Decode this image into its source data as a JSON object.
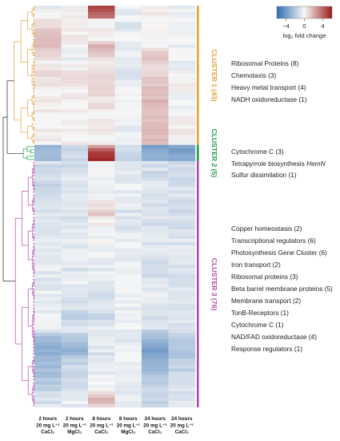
{
  "chart_data": {
    "type": "heatmap",
    "colorbar": {
      "label": "log₂ fold change",
      "ticks": [
        -4,
        0,
        4
      ],
      "range": [
        -6,
        6
      ],
      "low_color": "#2f6cb0",
      "mid_color": "#f7f7f7",
      "high_color": "#9b1b1b"
    },
    "columns": [
      [
        "2 hours",
        "20 mg L⁻¹",
        "CaCl₂"
      ],
      [
        "2 hours",
        "20 mg L⁻¹",
        "MgCl₂"
      ],
      [
        "8 hours",
        "20 mg L⁻¹",
        "CaCl₂"
      ],
      [
        "8 hours",
        "20 mg L⁻¹",
        "MgCl₂"
      ],
      [
        "24 hours",
        "20 mg L⁻¹",
        "CaCl₂"
      ],
      [
        "24 hours",
        "20 mg L⁻¹",
        "CaCl₂"
      ]
    ],
    "clusters": [
      {
        "label": "CLUSTER 1 (43)",
        "color": "#e0a23a",
        "rows": 43,
        "categories": [
          "Ribosomal Proteins (8)",
          "Chemotaxis (3)",
          "Heavy metal transport (4)",
          "NADH oxidoreductase (1)"
        ]
      },
      {
        "label": "CLUSTER 2 (5)",
        "color": "#1e9a4a",
        "rows": 5,
        "categories": [
          "Cytochrome C (3)",
          "Tetrapyrrole biosynthesis HemN",
          "Sulfur dissimilation (1)"
        ]
      },
      {
        "label": "CLUSTER 3 (76)",
        "color": "#b04aa8",
        "rows": 76,
        "categories": [
          "Copper homeostasis (2)",
          "Transcriptional regulators (6)",
          "Photosynthesis Gene Cluster (6)",
          "Iron transport (2)",
          "Ribosomal proteins (3)",
          "Beta barrel membrane proteins (5)",
          "Membrane transport (2)",
          "TonB-Receptors (1)",
          "Cytochrome C (1)",
          "NAD/FAD oxidoreductase (4)",
          "Response regulators (1)"
        ]
      }
    ],
    "column_profiles": [
      [
        [
          0,
          -0.3
        ],
        [
          4,
          0.5
        ],
        [
          9,
          1.5
        ],
        [
          13,
          1.4
        ],
        [
          17,
          0.2
        ],
        [
          22,
          0.8
        ],
        [
          26,
          -0.2
        ],
        [
          30,
          0.3
        ],
        [
          35,
          0.2
        ],
        [
          40,
          0.1
        ],
        [
          42,
          0.3
        ],
        [
          43,
          -2.8
        ],
        [
          47,
          -2.4
        ],
        [
          48,
          -1.0
        ],
        [
          55,
          -1.4
        ],
        [
          60,
          -0.8
        ],
        [
          68,
          -1.0
        ],
        [
          76,
          -0.5
        ],
        [
          84,
          -0.6
        ],
        [
          92,
          -0.4
        ],
        [
          99,
          -0.6
        ],
        [
          102,
          -2.2
        ],
        [
          106,
          -3.1
        ],
        [
          110,
          -2.6
        ],
        [
          114,
          -2.4
        ],
        [
          118,
          -1.4
        ],
        [
          123,
          -0.8
        ]
      ],
      [
        [
          0,
          -0.2
        ],
        [
          5,
          0.6
        ],
        [
          10,
          0.3
        ],
        [
          16,
          -0.3
        ],
        [
          20,
          0.4
        ],
        [
          26,
          0.3
        ],
        [
          32,
          0.1
        ],
        [
          40,
          0.2
        ],
        [
          42,
          0.1
        ],
        [
          43,
          -1.8
        ],
        [
          47,
          -1.2
        ],
        [
          48,
          -1.2
        ],
        [
          56,
          -0.6
        ],
        [
          64,
          -0.8
        ],
        [
          72,
          -0.4
        ],
        [
          80,
          -0.8
        ],
        [
          88,
          -0.3
        ],
        [
          96,
          -1.6
        ],
        [
          99,
          -0.6
        ],
        [
          102,
          -2.2
        ],
        [
          106,
          -2.8
        ],
        [
          110,
          -1.5
        ],
        [
          114,
          -1.2
        ],
        [
          118,
          -0.8
        ],
        [
          123,
          -0.5
        ]
      ],
      [
        [
          0,
          5.0
        ],
        [
          3,
          4.2
        ],
        [
          4,
          0.2
        ],
        [
          10,
          0.0
        ],
        [
          12,
          1.6
        ],
        [
          15,
          1.1
        ],
        [
          17,
          0.4
        ],
        [
          22,
          0.8
        ],
        [
          28,
          0.5
        ],
        [
          35,
          0.2
        ],
        [
          42,
          0.1
        ],
        [
          43,
          2.8
        ],
        [
          45,
          4.8
        ],
        [
          47,
          5.5
        ],
        [
          48,
          -0.2
        ],
        [
          58,
          -0.3
        ],
        [
          64,
          1.2
        ],
        [
          66,
          0.2
        ],
        [
          76,
          -0.3
        ],
        [
          86,
          -0.5
        ],
        [
          88,
          -1.5
        ],
        [
          92,
          -0.8
        ],
        [
          96,
          -1.2
        ],
        [
          99,
          -0.4
        ],
        [
          104,
          -0.6
        ],
        [
          108,
          -0.8
        ],
        [
          114,
          -0.4
        ],
        [
          118,
          -0.2
        ],
        [
          121,
          1.6
        ],
        [
          123,
          1.2
        ]
      ],
      [
        [
          0,
          -0.3
        ],
        [
          6,
          -0.6
        ],
        [
          14,
          -0.2
        ],
        [
          20,
          -0.6
        ],
        [
          28,
          -0.2
        ],
        [
          36,
          -0.4
        ],
        [
          42,
          -0.3
        ],
        [
          43,
          -1.0
        ],
        [
          47,
          -1.2
        ],
        [
          48,
          -0.6
        ],
        [
          56,
          -0.3
        ],
        [
          64,
          -0.8
        ],
        [
          72,
          -0.4
        ],
        [
          80,
          -0.5
        ],
        [
          88,
          -0.3
        ],
        [
          96,
          -0.5
        ],
        [
          99,
          -0.3
        ],
        [
          104,
          -0.5
        ],
        [
          110,
          -0.3
        ],
        [
          118,
          -0.6
        ],
        [
          123,
          -0.4
        ]
      ],
      [
        [
          0,
          0.2
        ],
        [
          6,
          0.0
        ],
        [
          12,
          0.2
        ],
        [
          16,
          1.6
        ],
        [
          18,
          0.9
        ],
        [
          22,
          1.4
        ],
        [
          30,
          1.8
        ],
        [
          36,
          1.6
        ],
        [
          42,
          1.4
        ],
        [
          43,
          -3.6
        ],
        [
          47,
          -3.2
        ],
        [
          48,
          -1.2
        ],
        [
          56,
          -0.8
        ],
        [
          64,
          -1.0
        ],
        [
          72,
          -0.6
        ],
        [
          80,
          -1.2
        ],
        [
          90,
          -0.5
        ],
        [
          99,
          -1.0
        ],
        [
          102,
          -2.6
        ],
        [
          106,
          -3.6
        ],
        [
          110,
          -3.0
        ],
        [
          114,
          -2.4
        ],
        [
          118,
          -1.6
        ],
        [
          123,
          -1.2
        ]
      ],
      [
        [
          0,
          -0.2
        ],
        [
          8,
          0.0
        ],
        [
          16,
          -0.4
        ],
        [
          24,
          0.2
        ],
        [
          30,
          -0.2
        ],
        [
          36,
          0.3
        ],
        [
          42,
          0.0
        ],
        [
          43,
          -3.8
        ],
        [
          47,
          -3.3
        ],
        [
          48,
          -1.4
        ],
        [
          56,
          -0.9
        ],
        [
          64,
          -1.1
        ],
        [
          72,
          -0.7
        ],
        [
          80,
          -0.9
        ],
        [
          88,
          -0.5
        ],
        [
          96,
          -1.0
        ],
        [
          99,
          -0.7
        ],
        [
          102,
          -1.8
        ],
        [
          106,
          -2.4
        ],
        [
          110,
          -1.8
        ],
        [
          114,
          -1.4
        ],
        [
          118,
          -0.9
        ],
        [
          123,
          -0.8
        ]
      ]
    ]
  }
}
